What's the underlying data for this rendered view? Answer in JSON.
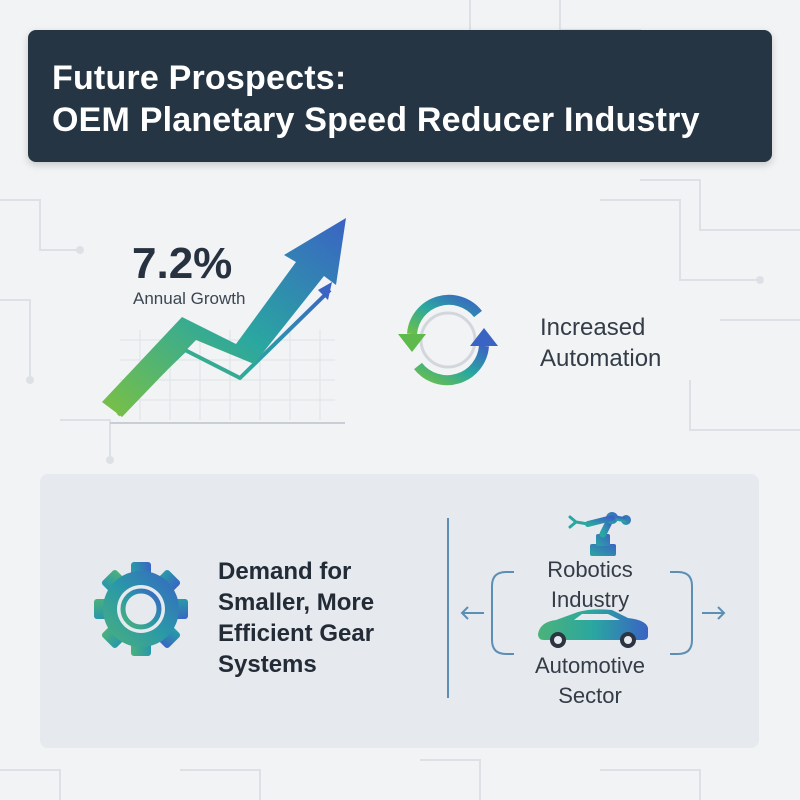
{
  "header": {
    "title_line1": "Future Prospects:",
    "title_line2": "OEM Planetary Speed Reducer Industry"
  },
  "growth": {
    "value": "7.2%",
    "label": "Annual Growth",
    "icon": "trend-arrow-chart-icon"
  },
  "automation": {
    "line1": "Increased",
    "line2": "Automation",
    "icon": "cycle-arrows-icon"
  },
  "demand": {
    "line1": "Demand for",
    "line2": "Smaller, More",
    "line3": "Efficient Gear",
    "line4": "Systems",
    "icon": "gear-icon"
  },
  "sectors": {
    "robotics_line1": "Robotics",
    "robotics_line2": "Industry",
    "automotive_line1": "Automotive",
    "automotive_line2": "Sector",
    "robot_icon": "robot-arm-icon",
    "car_icon": "car-icon"
  },
  "colors": {
    "header_bg": "#263543",
    "gradient_green": "#7cc142",
    "gradient_teal": "#2aa7a0",
    "gradient_blue": "#3a63c4",
    "panel_bg": "#e6e9ee"
  }
}
